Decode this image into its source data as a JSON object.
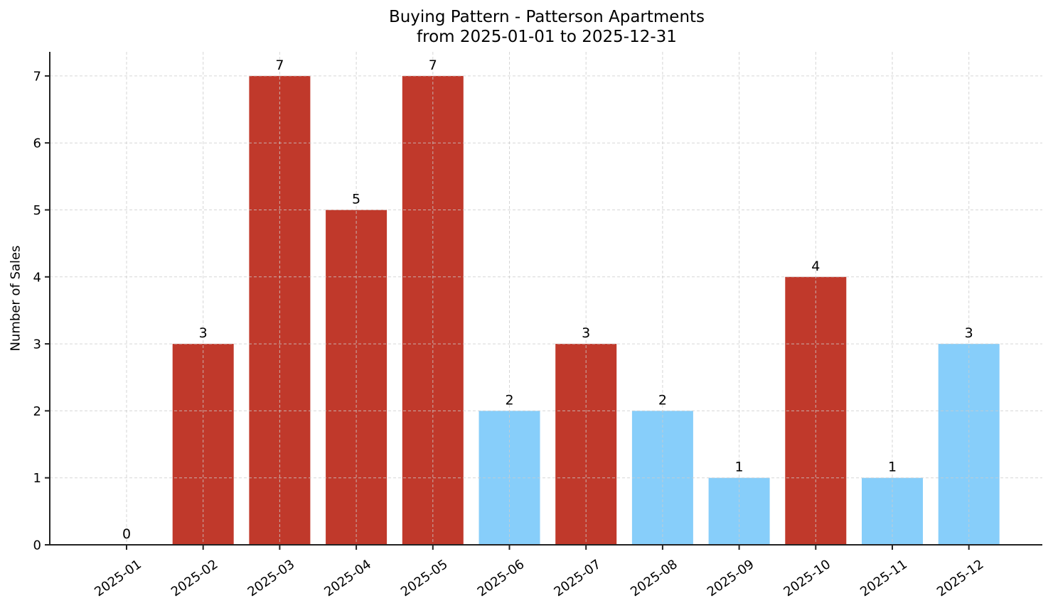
{
  "chart_data": {
    "type": "bar",
    "title": "Buying Pattern - Patterson Apartments",
    "subtitle": "from 2025-01-01 to 2025-12-31",
    "xlabel": "",
    "ylabel": "Number of Sales",
    "categories": [
      "2025-01",
      "2025-02",
      "2025-03",
      "2025-04",
      "2025-05",
      "2025-06",
      "2025-07",
      "2025-08",
      "2025-09",
      "2025-10",
      "2025-11",
      "2025-12"
    ],
    "values": [
      0,
      3,
      7,
      5,
      7,
      2,
      3,
      2,
      1,
      4,
      1,
      3
    ],
    "bar_colors": [
      "#c0392b",
      "#c0392b",
      "#c0392b",
      "#c0392b",
      "#c0392b",
      "#87cefa",
      "#c0392b",
      "#87cefa",
      "#87cefa",
      "#c0392b",
      "#87cefa",
      "#87cefa"
    ],
    "data_labels": [
      "0",
      "3",
      "7",
      "5",
      "7",
      "2",
      "3",
      "2",
      "1",
      "4",
      "1",
      "3"
    ],
    "yticks": [
      0,
      1,
      2,
      3,
      4,
      5,
      6,
      7
    ],
    "ylim": [
      0,
      7.35
    ],
    "grid": true,
    "legend": null
  },
  "colors": {
    "high": "#c0392b",
    "low": "#87cefa",
    "grid": "#cccccc",
    "axis": "#222222"
  }
}
